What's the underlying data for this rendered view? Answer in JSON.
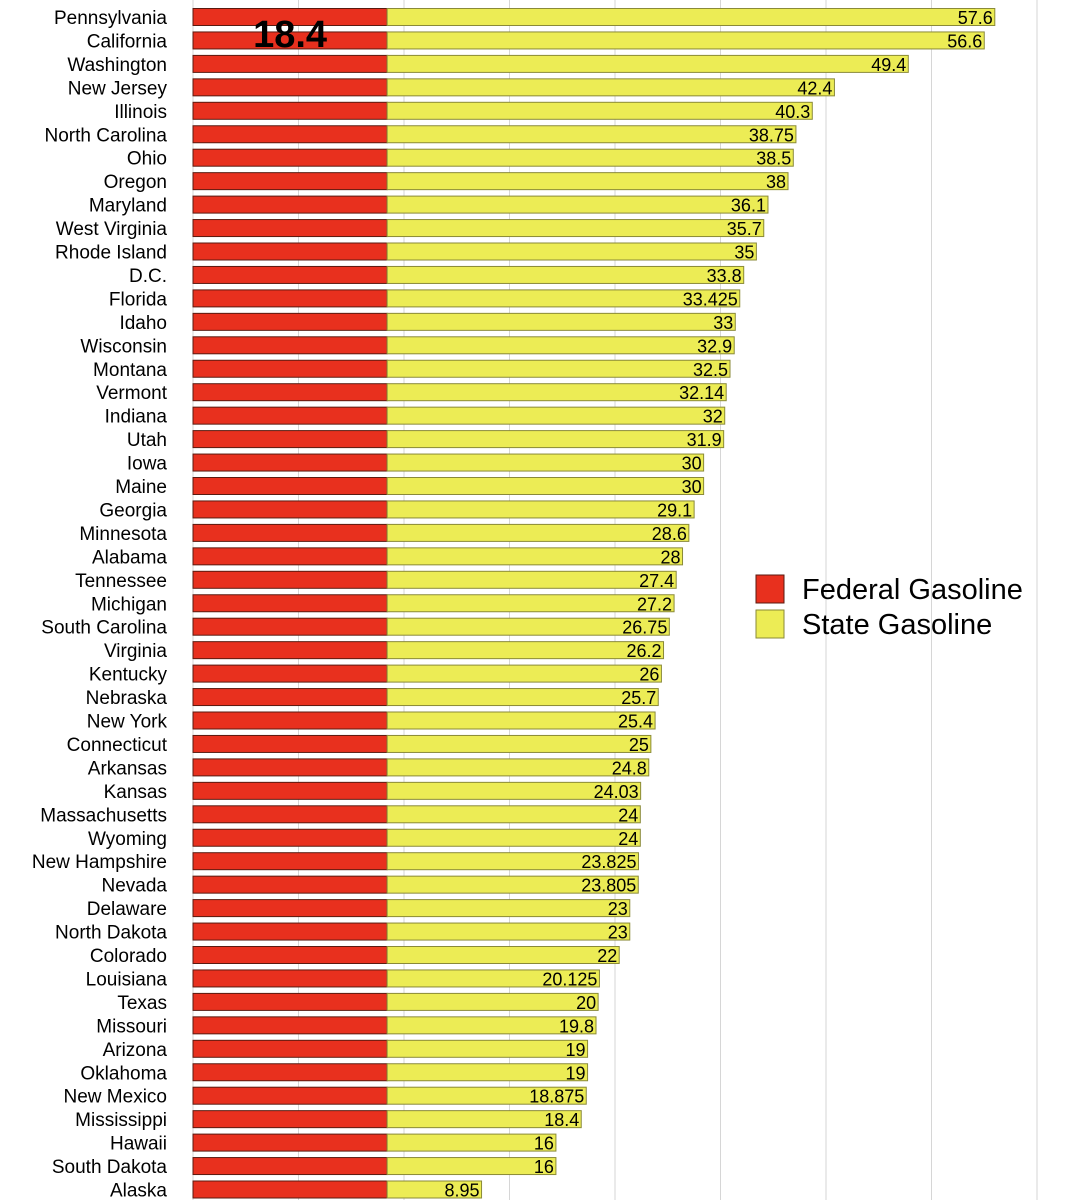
{
  "chart_data": {
    "type": "bar",
    "orientation": "horizontal",
    "stacked": true,
    "categories": [
      "Pennsylvania",
      "California",
      "Washington",
      "New Jersey",
      "Illinois",
      "North Carolina",
      "Ohio",
      "Oregon",
      "Maryland",
      "West Virginia",
      "Rhode Island",
      "D.C.",
      "Florida",
      "Idaho",
      "Wisconsin",
      "Montana",
      "Vermont",
      "Indiana",
      "Utah",
      "Iowa",
      "Maine",
      "Georgia",
      "Minnesota",
      "Alabama",
      "Tennessee",
      "Michigan",
      "South Carolina",
      "Virginia",
      "Kentucky",
      "Nebraska",
      "New York",
      "Connecticut",
      "Arkansas",
      "Kansas",
      "Massachusetts",
      "Wyoming",
      "New Hampshire",
      "Nevada",
      "Delaware",
      "North Dakota",
      "Colorado",
      "Louisiana",
      "Texas",
      "Missouri",
      "Arizona",
      "Oklahoma",
      "New Mexico",
      "Mississippi",
      "Hawaii",
      "South Dakota",
      "Alaska"
    ],
    "series": [
      {
        "name": "Federal Gasoline",
        "color": "#e8301e",
        "values": [
          18.4,
          18.4,
          18.4,
          18.4,
          18.4,
          18.4,
          18.4,
          18.4,
          18.4,
          18.4,
          18.4,
          18.4,
          18.4,
          18.4,
          18.4,
          18.4,
          18.4,
          18.4,
          18.4,
          18.4,
          18.4,
          18.4,
          18.4,
          18.4,
          18.4,
          18.4,
          18.4,
          18.4,
          18.4,
          18.4,
          18.4,
          18.4,
          18.4,
          18.4,
          18.4,
          18.4,
          18.4,
          18.4,
          18.4,
          18.4,
          18.4,
          18.4,
          18.4,
          18.4,
          18.4,
          18.4,
          18.4,
          18.4,
          18.4,
          18.4,
          18.4
        ]
      },
      {
        "name": "State Gasoline",
        "color": "#ecec55",
        "values": [
          57.6,
          56.6,
          49.4,
          42.4,
          40.3,
          38.75,
          38.5,
          38,
          36.1,
          35.7,
          35,
          33.8,
          33.425,
          33,
          32.9,
          32.5,
          32.14,
          32,
          31.9,
          30,
          30,
          29.1,
          28.6,
          28,
          27.4,
          27.2,
          26.75,
          26.2,
          26,
          25.7,
          25.4,
          25,
          24.8,
          24.03,
          24,
          24,
          23.825,
          23.805,
          23,
          23,
          22,
          20.125,
          20,
          19.8,
          19,
          19,
          18.875,
          18.4,
          16,
          16,
          8.95
        ]
      }
    ],
    "state_labels": [
      "57.6",
      "56.6",
      "49.4",
      "42.4",
      "40.3",
      "38.75",
      "38.5",
      "38",
      "36.1",
      "35.7",
      "35",
      "33.8",
      "33.425",
      "33",
      "32.9",
      "32.5",
      "32.14",
      "32",
      "31.9",
      "30",
      "30",
      "29.1",
      "28.6",
      "28",
      "27.4",
      "27.2",
      "26.75",
      "26.2",
      "26",
      "25.7",
      "25.4",
      "25",
      "24.8",
      "24.03",
      "24",
      "24",
      "23.825",
      "23.805",
      "23",
      "23",
      "22",
      "20.125",
      "20",
      "19.8",
      "19",
      "19",
      "18.875",
      "18.4",
      "16",
      "16",
      "8.95"
    ],
    "federal_label": "18.4",
    "legend": {
      "position": "right",
      "items": [
        {
          "label": "Federal Gasoline",
          "color": "#e8301e"
        },
        {
          "label": "State Gasoline",
          "color": "#ecec55"
        }
      ]
    },
    "grid": true,
    "xlim": [
      0,
      80
    ]
  }
}
